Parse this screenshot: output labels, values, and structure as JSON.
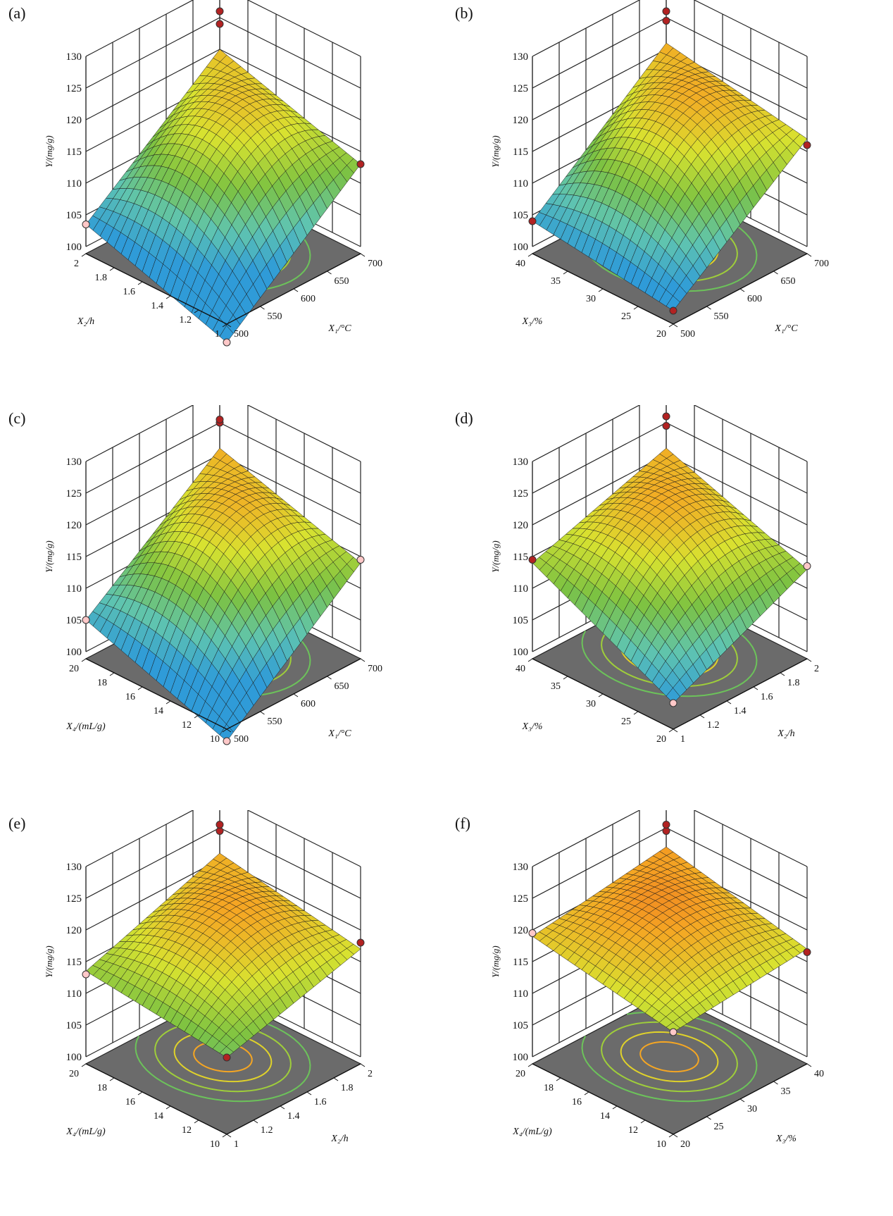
{
  "chart_data": [
    {
      "type": "surface",
      "label": "(a)",
      "zlabel": "Y/(mg/g)",
      "zlim": [
        100,
        130
      ],
      "z_ticks": [
        "100",
        "105",
        "110",
        "115",
        "120",
        "125",
        "130"
      ],
      "xlabel": "X₂/h",
      "x_ticks": [
        "1",
        "1.2",
        "1.4",
        "1.6",
        "1.8",
        "2"
      ],
      "xlim": [
        1,
        2
      ],
      "ylabel": "X₁/°C",
      "y_ticks": [
        "500",
        "550",
        "600",
        "650",
        "700"
      ],
      "ylim": [
        500,
        700
      ],
      "grid_z_top": [
        103.5,
        124,
        113,
        96,
        120
      ],
      "points": [
        {
          "x": 2,
          "y": 500,
          "z": 103.5,
          "color": "#ffc8c8"
        },
        {
          "x": 2,
          "y": 700,
          "z": 124,
          "color": "#b22222"
        },
        {
          "x": 2,
          "y": 700,
          "z": 126,
          "color": "#b22222"
        },
        {
          "x": 1,
          "y": 700,
          "z": 113,
          "color": "#b22222"
        },
        {
          "x": 1,
          "y": 500,
          "z": 96,
          "color": "#ffc8c8"
        }
      ]
    },
    {
      "type": "surface",
      "label": "(b)",
      "zlabel": "Y/(mg/g)",
      "zlim": [
        100,
        130
      ],
      "z_ticks": [
        "100",
        "105",
        "110",
        "115",
        "120",
        "125",
        "130"
      ],
      "xlabel": "X₃/%",
      "x_ticks": [
        "20",
        "25",
        "30",
        "35",
        "40"
      ],
      "xlim": [
        20,
        40
      ],
      "ylabel": "X₁/°C",
      "y_ticks": [
        "500",
        "550",
        "600",
        "650",
        "700"
      ],
      "ylim": [
        500,
        700
      ],
      "grid_z_top": [
        104,
        125,
        117,
        101,
        121
      ],
      "points": [
        {
          "x": 40,
          "y": 500,
          "z": 104,
          "color": "#b22222"
        },
        {
          "x": 40,
          "y": 700,
          "z": 124.5,
          "color": "#b22222"
        },
        {
          "x": 40,
          "y": 700,
          "z": 126,
          "color": "#b22222"
        },
        {
          "x": 20,
          "y": 700,
          "z": 116,
          "color": "#b22222"
        },
        {
          "x": 20,
          "y": 500,
          "z": 101,
          "color": "#b22222"
        }
      ]
    },
    {
      "type": "surface",
      "label": "(c)",
      "zlabel": "Y/(mg/g)",
      "zlim": [
        100,
        130
      ],
      "z_ticks": [
        "100",
        "105",
        "110",
        "115",
        "120",
        "125",
        "130"
      ],
      "xlabel": "X₄/(mL/g)",
      "x_ticks": [
        "10",
        "12",
        "14",
        "16",
        "18",
        "20"
      ],
      "xlim": [
        10,
        20
      ],
      "ylabel": "X₁/°C",
      "y_ticks": [
        "500",
        "550",
        "600",
        "650",
        "700"
      ],
      "ylim": [
        500,
        700
      ],
      "grid_z_top": [
        105,
        125,
        114,
        97,
        121
      ],
      "points": [
        {
          "x": 20,
          "y": 500,
          "z": 105,
          "color": "#ffc8c8"
        },
        {
          "x": 20,
          "y": 700,
          "z": 125,
          "color": "#b22222"
        },
        {
          "x": 20,
          "y": 700,
          "z": 125.5,
          "color": "#b22222"
        },
        {
          "x": 10,
          "y": 700,
          "z": 114.5,
          "color": "#ffc8c8"
        },
        {
          "x": 10,
          "y": 500,
          "z": 97,
          "color": "#ffc8c8"
        }
      ]
    },
    {
      "type": "surface",
      "label": "(d)",
      "zlabel": "Y/(mg/g)",
      "zlim": [
        100,
        130
      ],
      "z_ticks": [
        "100",
        "105",
        "110",
        "115",
        "120",
        "125",
        "130"
      ],
      "xlabel": "X₃/%",
      "x_ticks": [
        "20",
        "25",
        "30",
        "35",
        "40"
      ],
      "xlim": [
        20,
        40
      ],
      "ylabel": "X₂/h",
      "y_ticks": [
        "1",
        "1.2",
        "1.4",
        "1.6",
        "1.8",
        "2"
      ],
      "ylim": [
        1,
        2
      ],
      "grid_z_top": [
        114,
        125,
        113,
        103,
        121
      ],
      "points": [
        {
          "x": 40,
          "y": 1,
          "z": 114.5,
          "color": "#b22222"
        },
        {
          "x": 40,
          "y": 2,
          "z": 124.5,
          "color": "#b22222"
        },
        {
          "x": 40,
          "y": 2,
          "z": 126,
          "color": "#b22222"
        },
        {
          "x": 20,
          "y": 2,
          "z": 113.5,
          "color": "#ffc8c8"
        },
        {
          "x": 20,
          "y": 1,
          "z": 103,
          "color": "#ffc8c8"
        }
      ]
    },
    {
      "type": "surface",
      "label": "(e)",
      "zlabel": "Y/(mg/g)",
      "zlim": [
        100,
        130
      ],
      "z_ticks": [
        "100",
        "105",
        "110",
        "115",
        "120",
        "125",
        "130"
      ],
      "xlabel": "X₄/(mL/g)",
      "x_ticks": [
        "10",
        "12",
        "14",
        "16",
        "18",
        "20"
      ],
      "xlim": [
        10,
        20
      ],
      "ylabel": "X₂/h",
      "y_ticks": [
        "1",
        "1.2",
        "1.4",
        "1.6",
        "1.8",
        "2"
      ],
      "ylim": [
        1,
        2
      ],
      "grid_z_top": [
        113.5,
        125,
        117,
        111,
        121
      ],
      "points": [
        {
          "x": 20,
          "y": 1,
          "z": 113,
          "color": "#ffc8c8"
        },
        {
          "x": 20,
          "y": 2,
          "z": 124.5,
          "color": "#b22222"
        },
        {
          "x": 20,
          "y": 2,
          "z": 125.5,
          "color": "#b22222"
        },
        {
          "x": 10,
          "y": 2,
          "z": 118,
          "color": "#b22222"
        },
        {
          "x": 10,
          "y": 1,
          "z": 111,
          "color": "#b22222"
        }
      ]
    },
    {
      "type": "surface",
      "label": "(f)",
      "zlabel": "Y/(mg/g)",
      "zlim": [
        100,
        130
      ],
      "z_ticks": [
        "100",
        "105",
        "110",
        "115",
        "120",
        "125",
        "130"
      ],
      "xlabel": "X₄/(mL/g)",
      "x_ticks": [
        "10",
        "12",
        "14",
        "16",
        "18",
        "20"
      ],
      "xlim": [
        10,
        20
      ],
      "ylabel": "X₃/%",
      "y_ticks": [
        "20",
        "25",
        "30",
        "35",
        "40"
      ],
      "ylim": [
        20,
        40
      ],
      "grid_z_top": [
        119,
        125,
        117,
        115,
        122
      ],
      "points": [
        {
          "x": 20,
          "y": 20,
          "z": 119.5,
          "color": "#ffc8c8"
        },
        {
          "x": 20,
          "y": 40,
          "z": 124.5,
          "color": "#b22222"
        },
        {
          "x": 20,
          "y": 40,
          "z": 125.5,
          "color": "#b22222"
        },
        {
          "x": 10,
          "y": 40,
          "z": 116.5,
          "color": "#b22222"
        },
        {
          "x": 10,
          "y": 20,
          "z": 115,
          "color": "#ffc8c8"
        }
      ]
    }
  ],
  "colors": {
    "grid": "#222222",
    "floor": "#6b6b6b",
    "cmap": [
      "#2f9bd8",
      "#5fc4b0",
      "#7cc242",
      "#d8e230",
      "#f5a623",
      "#e8471c"
    ]
  }
}
